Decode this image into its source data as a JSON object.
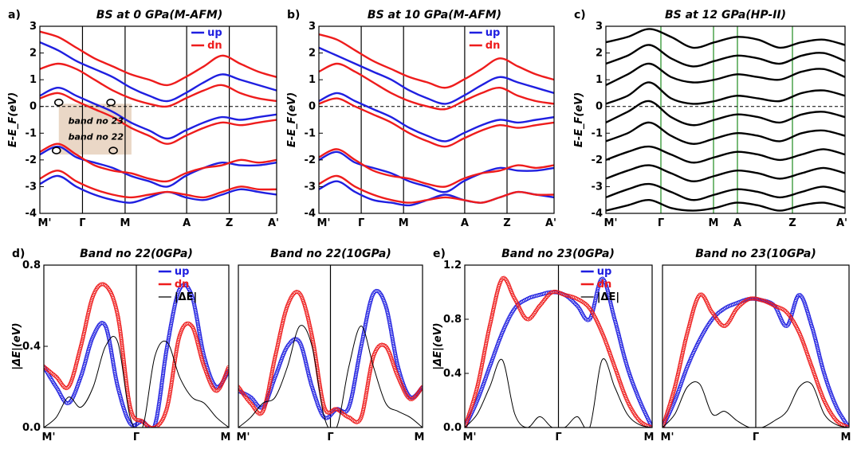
{
  "colors": {
    "up": "#1f1fe0",
    "dn": "#ee1c1c",
    "total": "#000000",
    "hsym": "#1e8c1e",
    "highlight": "#ead7c6"
  },
  "chart_data": [
    {
      "id": "a",
      "panel_label": "a)",
      "type": "line",
      "title": "BS at 0 GPa(M-AFM)",
      "ylabel": "E-E_F(eV)",
      "ylim": [
        -4,
        3
      ],
      "yticks": [
        "3",
        "2",
        "1",
        "0",
        "-1",
        "-2",
        "-3",
        "-4"
      ],
      "kpoints": [
        "M'",
        "Γ",
        "M",
        "A",
        "Z",
        "A'"
      ],
      "legend": [
        "up",
        "dn"
      ],
      "annotations": [
        "band no 23",
        "band no 22"
      ],
      "series": [
        {
          "name": "up",
          "y": [
            -1.8,
            -1.5,
            -1.9,
            -2.1,
            -2.3,
            -2.6,
            -2.8,
            -3.0,
            -2.6,
            -2.3,
            -2.1,
            -2.2,
            -2.2,
            -2.1
          ]
        },
        {
          "name": "up",
          "y": [
            -2.9,
            -2.6,
            -3.0,
            -3.3,
            -3.5,
            -3.6,
            -3.4,
            -3.2,
            -3.4,
            -3.5,
            -3.3,
            -3.1,
            -3.2,
            -3.3
          ]
        },
        {
          "name": "up",
          "y": [
            0.4,
            0.7,
            0.4,
            0.1,
            -0.2,
            -0.6,
            -0.9,
            -1.2,
            -0.9,
            -0.6,
            -0.4,
            -0.5,
            -0.4,
            -0.3
          ]
        },
        {
          "name": "up",
          "y": [
            2.4,
            2.1,
            1.7,
            1.4,
            1.1,
            0.7,
            0.4,
            0.2,
            0.5,
            0.9,
            1.2,
            1.0,
            0.8,
            0.6
          ]
        },
        {
          "name": "dn",
          "y": [
            -1.7,
            -1.4,
            -1.8,
            -2.2,
            -2.4,
            -2.5,
            -2.7,
            -2.8,
            -2.5,
            -2.3,
            -2.2,
            -2.0,
            -2.1,
            -2.0
          ]
        },
        {
          "name": "dn",
          "y": [
            -2.7,
            -2.4,
            -2.8,
            -3.1,
            -3.3,
            -3.4,
            -3.3,
            -3.2,
            -3.3,
            -3.4,
            -3.2,
            -3.0,
            -3.1,
            -3.1
          ]
        },
        {
          "name": "dn",
          "y": [
            0.3,
            0.5,
            0.2,
            -0.1,
            -0.4,
            -0.8,
            -1.1,
            -1.4,
            -1.1,
            -0.8,
            -0.6,
            -0.7,
            -0.6,
            -0.5
          ]
        },
        {
          "name": "dn",
          "y": [
            1.4,
            1.6,
            1.4,
            1.0,
            0.6,
            0.3,
            0.1,
            0.0,
            0.3,
            0.6,
            0.8,
            0.5,
            0.3,
            0.2
          ]
        },
        {
          "name": "dn",
          "y": [
            2.8,
            2.6,
            2.2,
            1.8,
            1.5,
            1.2,
            1.0,
            0.8,
            1.1,
            1.5,
            1.9,
            1.6,
            1.3,
            1.1
          ]
        }
      ]
    },
    {
      "id": "b",
      "panel_label": "b)",
      "type": "line",
      "title": "BS at 10 GPa(M-AFM)",
      "ylabel": "E-E_F(eV)",
      "ylim": [
        -4,
        3
      ],
      "yticks": [
        "3",
        "2",
        "1",
        "0",
        "-1",
        "-2",
        "-3",
        "-4"
      ],
      "kpoints": [
        "M'",
        "Γ",
        "M",
        "A",
        "Z",
        "A'"
      ],
      "legend": [
        "up",
        "dn"
      ],
      "series": [
        {
          "name": "up",
          "y": [
            -2.0,
            -1.7,
            -2.1,
            -2.3,
            -2.5,
            -2.8,
            -3.0,
            -3.2,
            -2.8,
            -2.5,
            -2.3,
            -2.4,
            -2.4,
            -2.3
          ]
        },
        {
          "name": "up",
          "y": [
            -3.1,
            -2.8,
            -3.2,
            -3.5,
            -3.6,
            -3.7,
            -3.5,
            -3.3,
            -3.5,
            -3.6,
            -3.4,
            -3.2,
            -3.3,
            -3.4
          ]
        },
        {
          "name": "up",
          "y": [
            0.2,
            0.5,
            0.2,
            -0.1,
            -0.4,
            -0.8,
            -1.1,
            -1.3,
            -1.0,
            -0.7,
            -0.5,
            -0.6,
            -0.5,
            -0.4
          ]
        },
        {
          "name": "up",
          "y": [
            2.2,
            1.9,
            1.6,
            1.3,
            1.0,
            0.6,
            0.3,
            0.1,
            0.4,
            0.8,
            1.1,
            0.9,
            0.7,
            0.5
          ]
        },
        {
          "name": "dn",
          "y": [
            -1.9,
            -1.6,
            -2.0,
            -2.4,
            -2.6,
            -2.7,
            -2.9,
            -3.0,
            -2.7,
            -2.5,
            -2.4,
            -2.2,
            -2.3,
            -2.2
          ]
        },
        {
          "name": "dn",
          "y": [
            -2.9,
            -2.6,
            -3.0,
            -3.3,
            -3.5,
            -3.6,
            -3.5,
            -3.4,
            -3.5,
            -3.6,
            -3.4,
            -3.2,
            -3.3,
            -3.3
          ]
        },
        {
          "name": "dn",
          "y": [
            0.1,
            0.3,
            0.0,
            -0.3,
            -0.6,
            -1.0,
            -1.3,
            -1.5,
            -1.2,
            -0.9,
            -0.7,
            -0.8,
            -0.7,
            -0.6
          ]
        },
        {
          "name": "dn",
          "y": [
            1.3,
            1.6,
            1.3,
            0.9,
            0.5,
            0.2,
            0.0,
            -0.1,
            0.2,
            0.5,
            0.7,
            0.4,
            0.2,
            0.1
          ]
        },
        {
          "name": "dn",
          "y": [
            2.7,
            2.5,
            2.1,
            1.7,
            1.4,
            1.1,
            0.9,
            0.7,
            1.0,
            1.4,
            1.8,
            1.5,
            1.2,
            1.0
          ]
        }
      ]
    },
    {
      "id": "c",
      "panel_label": "c)",
      "type": "line",
      "title": "BS at 12 GPa(HP-II)",
      "ylabel": "E-E_F(eV)",
      "ylim": [
        -4,
        3
      ],
      "yticks": [
        "3",
        "2",
        "1",
        "0",
        "-1",
        "-2",
        "-3",
        "-4"
      ],
      "kpoints": [
        "M'",
        "Γ",
        "M",
        "A",
        "Z",
        "A'"
      ],
      "series": [
        {
          "name": "total",
          "y": [
            2.4,
            2.6,
            2.9,
            2.6,
            2.2,
            2.4,
            2.6,
            2.5,
            2.2,
            2.4,
            2.5,
            2.3
          ]
        },
        {
          "name": "total",
          "y": [
            1.6,
            1.9,
            2.3,
            1.8,
            1.5,
            1.7,
            1.9,
            1.8,
            1.6,
            1.9,
            2.0,
            1.7
          ]
        },
        {
          "name": "total",
          "y": [
            0.8,
            1.2,
            1.6,
            1.1,
            0.9,
            1.0,
            1.2,
            1.1,
            1.0,
            1.3,
            1.4,
            1.1
          ]
        },
        {
          "name": "total",
          "y": [
            0.1,
            0.4,
            0.9,
            0.3,
            0.1,
            0.2,
            0.4,
            0.3,
            0.2,
            0.5,
            0.6,
            0.4
          ]
        },
        {
          "name": "total",
          "y": [
            -0.6,
            -0.2,
            0.2,
            -0.4,
            -0.7,
            -0.5,
            -0.3,
            -0.4,
            -0.6,
            -0.3,
            -0.2,
            -0.4
          ]
        },
        {
          "name": "total",
          "y": [
            -1.3,
            -1.0,
            -0.6,
            -1.1,
            -1.4,
            -1.2,
            -1.0,
            -1.1,
            -1.3,
            -1.0,
            -0.9,
            -1.1
          ]
        },
        {
          "name": "total",
          "y": [
            -2.0,
            -1.7,
            -1.5,
            -1.8,
            -2.1,
            -1.9,
            -1.7,
            -1.8,
            -2.0,
            -1.8,
            -1.6,
            -1.8
          ]
        },
        {
          "name": "total",
          "y": [
            -2.7,
            -2.4,
            -2.2,
            -2.5,
            -2.8,
            -2.6,
            -2.4,
            -2.5,
            -2.7,
            -2.5,
            -2.3,
            -2.5
          ]
        },
        {
          "name": "total",
          "y": [
            -3.4,
            -3.1,
            -2.9,
            -3.2,
            -3.5,
            -3.3,
            -3.1,
            -3.2,
            -3.4,
            -3.2,
            -3.0,
            -3.2
          ]
        },
        {
          "name": "total",
          "y": [
            -3.9,
            -3.7,
            -3.5,
            -3.8,
            -3.9,
            -3.8,
            -3.6,
            -3.7,
            -3.9,
            -3.7,
            -3.6,
            -3.8
          ]
        }
      ]
    },
    {
      "id": "d1",
      "panel_label": "d)",
      "type": "scatter",
      "title": "Band no 22(0GPa)",
      "ylabel": "|ΔE|(eV)",
      "ylim": [
        0,
        0.8
      ],
      "yticks": [
        "0.8",
        "0.4",
        "0.0"
      ],
      "kpoints": [
        "M'",
        "Γ",
        "M"
      ],
      "legend": [
        "up",
        "dn",
        "|ΔE|"
      ],
      "series": [
        {
          "name": "up",
          "y": [
            0.3,
            0.2,
            0.12,
            0.25,
            0.45,
            0.5,
            0.2,
            0.02,
            0.03,
            0.01,
            0.4,
            0.68,
            0.65,
            0.35,
            0.2,
            0.28
          ]
        },
        {
          "name": "dn",
          "y": [
            0.3,
            0.25,
            0.2,
            0.4,
            0.65,
            0.7,
            0.55,
            0.1,
            0.03,
            0.0,
            0.1,
            0.45,
            0.5,
            0.3,
            0.18,
            0.3
          ]
        },
        {
          "name": "|ΔE|",
          "y": [
            0.0,
            0.05,
            0.15,
            0.1,
            0.2,
            0.4,
            0.42,
            0.05,
            0.0,
            0.35,
            0.42,
            0.25,
            0.15,
            0.12,
            0.05,
            0.0
          ]
        }
      ]
    },
    {
      "id": "d2",
      "panel_label": "",
      "type": "scatter",
      "title": "Band no 22(10GPa)",
      "ylabel": "",
      "ylim": [
        0,
        0.8
      ],
      "kpoints": [
        "M'",
        "Γ",
        "M"
      ],
      "series": [
        {
          "name": "up",
          "y": [
            0.18,
            0.15,
            0.1,
            0.25,
            0.4,
            0.42,
            0.2,
            0.05,
            0.09,
            0.1,
            0.4,
            0.66,
            0.6,
            0.3,
            0.15,
            0.2
          ]
        },
        {
          "name": "dn",
          "y": [
            0.2,
            0.12,
            0.08,
            0.35,
            0.6,
            0.66,
            0.45,
            0.1,
            0.09,
            0.05,
            0.05,
            0.35,
            0.4,
            0.25,
            0.14,
            0.2
          ]
        },
        {
          "name": "|ΔE|",
          "y": [
            0.0,
            0.05,
            0.12,
            0.15,
            0.3,
            0.5,
            0.4,
            0.05,
            0.0,
            0.3,
            0.5,
            0.3,
            0.12,
            0.08,
            0.05,
            0.0
          ]
        }
      ]
    },
    {
      "id": "e1",
      "panel_label": "e)",
      "type": "scatter",
      "title": "Band no 23(0GPa)",
      "ylabel": "|ΔE|(eV)",
      "ylim": [
        0,
        1.2
      ],
      "yticks": [
        "1.2",
        "0.8",
        "0.4",
        "0.0"
      ],
      "kpoints": [
        "M'",
        "Γ",
        "M"
      ],
      "legend": [
        "up",
        "dn",
        "|ΔE|"
      ],
      "series": [
        {
          "name": "up",
          "y": [
            0.0,
            0.2,
            0.45,
            0.7,
            0.88,
            0.95,
            0.98,
            1.0,
            0.98,
            0.9,
            0.8,
            1.1,
            0.8,
            0.45,
            0.2,
            0.0
          ]
        },
        {
          "name": "dn",
          "y": [
            0.0,
            0.3,
            0.75,
            1.1,
            0.95,
            0.8,
            0.9,
            1.0,
            0.98,
            0.95,
            0.88,
            0.7,
            0.45,
            0.2,
            0.05,
            0.0
          ]
        },
        {
          "name": "|ΔE|",
          "y": [
            0.0,
            0.1,
            0.3,
            0.5,
            0.1,
            0.0,
            0.08,
            0.0,
            0.0,
            0.08,
            0.0,
            0.5,
            0.3,
            0.1,
            0.02,
            0.0
          ]
        }
      ]
    },
    {
      "id": "e2",
      "panel_label": "",
      "type": "scatter",
      "title": "Band no 23(10GPa)",
      "ylabel": "",
      "ylim": [
        0,
        1.2
      ],
      "kpoints": [
        "M'",
        "Γ",
        "M"
      ],
      "series": [
        {
          "name": "up",
          "y": [
            0.0,
            0.2,
            0.45,
            0.65,
            0.8,
            0.88,
            0.92,
            0.95,
            0.94,
            0.9,
            0.75,
            0.98,
            0.75,
            0.4,
            0.15,
            0.0
          ]
        },
        {
          "name": "dn",
          "y": [
            0.0,
            0.3,
            0.7,
            0.98,
            0.85,
            0.75,
            0.88,
            0.95,
            0.94,
            0.9,
            0.85,
            0.7,
            0.45,
            0.2,
            0.05,
            0.0
          ]
        },
        {
          "name": "|ΔE|",
          "y": [
            0.0,
            0.1,
            0.3,
            0.32,
            0.1,
            0.12,
            0.05,
            0.0,
            0.0,
            0.05,
            0.12,
            0.3,
            0.32,
            0.1,
            0.02,
            0.0
          ]
        }
      ]
    }
  ]
}
